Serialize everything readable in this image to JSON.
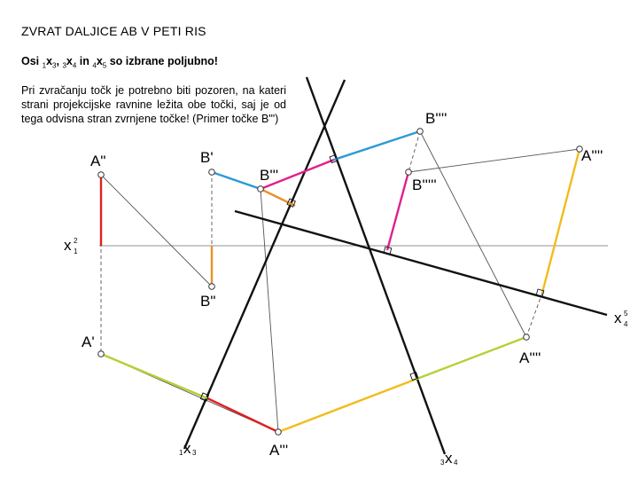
{
  "title": "ZVRAT DALJICE AB V PETI RIS",
  "subtitle": {
    "prefix": "Osi ",
    "axis1": {
      "sub1": "1",
      "x": "x",
      "sub2": "3"
    },
    "sep1": ", ",
    "axis2": {
      "sub1": "3",
      "x": "x",
      "sub2": "4"
    },
    "sep2": " in ",
    "axis3": {
      "sub1": "4",
      "x": "x",
      "sub2": "5"
    },
    "suffix": " so izbrane poljubno!"
  },
  "note": "Pri zvračanju točk je potrebno biti pozoren, na kateri strani projekcijske ravnine ležita obe točki, saj je od tega odvisna stran zvrnjene točke! (Primer točke B'\")",
  "labels": {
    "A2": "A\"",
    "B1": "B'",
    "B3": "B'''",
    "B4": "B''''",
    "A5": "A''''",
    "B5": "B'''''",
    "B2": "B\"",
    "A1": "A'",
    "A4": "A''''",
    "A3": "A'''",
    "x12_x": "x",
    "x12_sup": "2",
    "x12_sub": "1",
    "x13_sub1": "1",
    "x13_x": "x",
    "x13_sub2": "3",
    "x34_sub1": "3",
    "x34_x": "x",
    "x34_sub2": "4",
    "x45_x": "x",
    "x45_sup": "5",
    "x45_sub": "4"
  },
  "colors": {
    "red": "#e02020",
    "orange": "#e8922a",
    "blue": "#2e9ad6",
    "magenta": "#e0208f",
    "yellow": "#f2bc1c",
    "green": "#b2d235",
    "axis": "#111111",
    "thin": "#555555",
    "gray": "#a6a6a6"
  }
}
